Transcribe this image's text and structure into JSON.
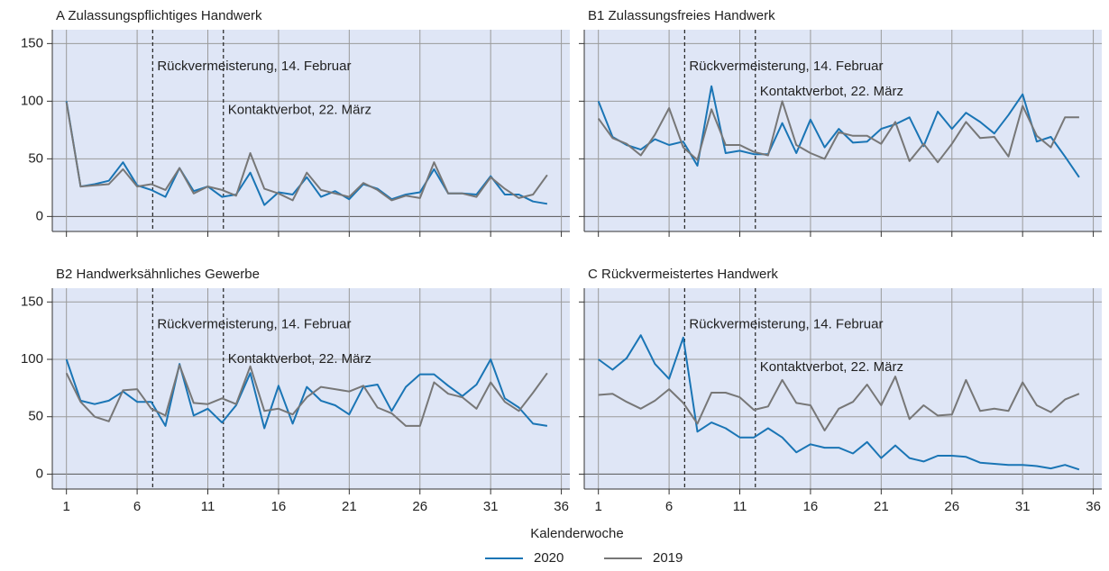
{
  "chart_data": [
    {
      "type": "line",
      "title": "A Zulassungspflichtiges Handwerk",
      "x": [
        1,
        2,
        3,
        4,
        5,
        6,
        7,
        8,
        9,
        10,
        11,
        12,
        13,
        14,
        15,
        16,
        17,
        18,
        19,
        20,
        21,
        22,
        23,
        24,
        25,
        26,
        27,
        28,
        29,
        30,
        31,
        32,
        33,
        34,
        35
      ],
      "series": [
        {
          "name": "2020",
          "color": "#1a75b5",
          "values": [
            100,
            26,
            28,
            31,
            47,
            27,
            23,
            17,
            42,
            22,
            26,
            17,
            19,
            38,
            10,
            21,
            19,
            34,
            17,
            22,
            15,
            28,
            24,
            15,
            19,
            21,
            41,
            20,
            20,
            19,
            35,
            19,
            19,
            13,
            11
          ]
        },
        {
          "name": "2019",
          "color": "#777777",
          "values": [
            99,
            26,
            27,
            28,
            41,
            26,
            28,
            23,
            42,
            20,
            26,
            23,
            18,
            55,
            24,
            20,
            14,
            38,
            23,
            20,
            17,
            29,
            23,
            14,
            18,
            16,
            47,
            20,
            20,
            17,
            34,
            24,
            16,
            19,
            36
          ]
        }
      ],
      "xlim": [
        0,
        36.6
      ],
      "ylim": [
        -13,
        162
      ],
      "xticks": [
        1,
        6,
        11,
        16,
        21,
        26,
        31,
        36
      ],
      "yticks": [
        0,
        50,
        100,
        150
      ],
      "grid": true,
      "annotations": [
        {
          "x": 7.1,
          "text": "Rückvermeisterung, 14. Februar"
        },
        {
          "x": 12.1,
          "text": "Kontaktverbot, 22. März"
        }
      ]
    },
    {
      "type": "line",
      "title": "B1 Zulassungsfreies Handwerk",
      "x": [
        1,
        2,
        3,
        4,
        5,
        6,
        7,
        8,
        9,
        10,
        11,
        12,
        13,
        14,
        15,
        16,
        17,
        18,
        19,
        20,
        21,
        22,
        23,
        24,
        25,
        26,
        27,
        28,
        29,
        30,
        31,
        32,
        33,
        34,
        35
      ],
      "series": [
        {
          "name": "2020",
          "color": "#1a75b5",
          "values": [
            100,
            69,
            62,
            58,
            67,
            62,
            65,
            44,
            113,
            55,
            57,
            54,
            54,
            81,
            55,
            84,
            60,
            76,
            64,
            65,
            76,
            80,
            86,
            61,
            91,
            76,
            90,
            82,
            72,
            88,
            106,
            65,
            69,
            52,
            34
          ]
        },
        {
          "name": "2019",
          "color": "#777777",
          "values": [
            85,
            68,
            63,
            53,
            71,
            94,
            60,
            49,
            93,
            62,
            62,
            56,
            53,
            100,
            62,
            55,
            50,
            73,
            70,
            70,
            63,
            82,
            48,
            63,
            47,
            63,
            82,
            68,
            69,
            52,
            96,
            70,
            60,
            86,
            86
          ]
        }
      ],
      "xlim": [
        0,
        36.6
      ],
      "ylim": [
        -13,
        162
      ],
      "xticks": [
        1,
        6,
        11,
        16,
        21,
        26,
        31,
        36
      ],
      "yticks": [
        0,
        50,
        100,
        150
      ],
      "grid": true,
      "annotations": [
        {
          "x": 7.1,
          "text": "Rückvermeisterung, 14. Februar"
        },
        {
          "x": 12.1,
          "text": "Kontaktverbot, 22. März"
        }
      ]
    },
    {
      "type": "line",
      "title": "B2 Handwerksähnliches Gewerbe",
      "x": [
        1,
        2,
        3,
        4,
        5,
        6,
        7,
        8,
        9,
        10,
        11,
        12,
        13,
        14,
        15,
        16,
        17,
        18,
        19,
        20,
        21,
        22,
        23,
        24,
        25,
        26,
        27,
        28,
        29,
        30,
        31,
        32,
        33,
        34,
        35
      ],
      "series": [
        {
          "name": "2020",
          "color": "#1a75b5",
          "values": [
            100,
            64,
            61,
            64,
            72,
            63,
            63,
            42,
            96,
            51,
            57,
            45,
            60,
            88,
            40,
            77,
            44,
            76,
            64,
            60,
            52,
            76,
            78,
            55,
            76,
            87,
            87,
            77,
            68,
            78,
            100,
            66,
            58,
            44,
            42
          ]
        },
        {
          "name": "2019",
          "color": "#777777",
          "values": [
            88,
            63,
            50,
            46,
            73,
            74,
            57,
            51,
            95,
            62,
            61,
            66,
            61,
            94,
            55,
            57,
            52,
            67,
            76,
            74,
            72,
            77,
            58,
            53,
            42,
            42,
            80,
            70,
            67,
            57,
            80,
            63,
            55,
            71,
            88
          ]
        }
      ],
      "xlim": [
        0,
        36.6
      ],
      "ylim": [
        -13,
        162
      ],
      "xticks": [
        1,
        6,
        11,
        16,
        21,
        26,
        31,
        36
      ],
      "yticks": [
        0,
        50,
        100,
        150
      ],
      "grid": true,
      "annotations": [
        {
          "x": 7.1,
          "text": "Rückvermeisterung, 14. Februar"
        },
        {
          "x": 12.1,
          "text": "Kontaktverbot, 22. März"
        }
      ]
    },
    {
      "type": "line",
      "title": "C Rückvermeistertes Handwerk",
      "x": [
        1,
        2,
        3,
        4,
        5,
        6,
        7,
        8,
        9,
        10,
        11,
        12,
        13,
        14,
        15,
        16,
        17,
        18,
        19,
        20,
        21,
        22,
        23,
        24,
        25,
        26,
        27,
        28,
        29,
        30,
        31,
        32,
        33,
        34,
        35
      ],
      "series": [
        {
          "name": "2020",
          "color": "#1a75b5",
          "values": [
            100,
            91,
            101,
            121,
            96,
            83,
            119,
            37,
            45,
            40,
            32,
            32,
            40,
            32,
            19,
            26,
            23,
            23,
            18,
            28,
            14,
            25,
            14,
            11,
            16,
            16,
            15,
            10,
            9,
            8,
            8,
            7,
            5,
            8,
            4
          ]
        },
        {
          "name": "2019",
          "color": "#777777",
          "values": [
            69,
            70,
            63,
            57,
            64,
            74,
            62,
            44,
            71,
            71,
            67,
            56,
            59,
            82,
            62,
            60,
            38,
            57,
            63,
            78,
            60,
            85,
            48,
            60,
            51,
            52,
            82,
            55,
            57,
            55,
            80,
            60,
            54,
            65,
            70
          ]
        }
      ],
      "xlim": [
        0,
        36.6
      ],
      "ylim": [
        -13,
        162
      ],
      "xticks": [
        1,
        6,
        11,
        16,
        21,
        26,
        31,
        36
      ],
      "yticks": [
        0,
        50,
        100,
        150
      ],
      "grid": true,
      "annotations": [
        {
          "x": 7.1,
          "text": "Rückvermeisterung, 14. Februar"
        },
        {
          "x": 12.1,
          "text": "Kontaktverbot, 22. März"
        }
      ]
    }
  ],
  "xlabel": "Kalenderwoche"
}
